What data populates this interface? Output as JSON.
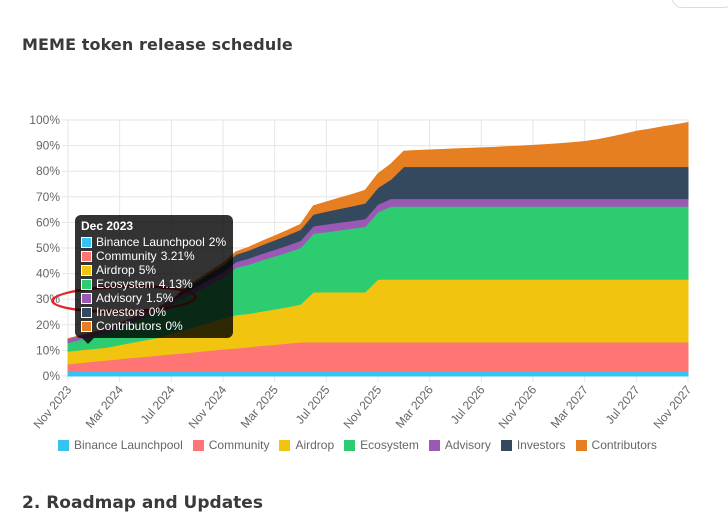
{
  "page": {
    "title": "MEME token release schedule",
    "next_section": "2. Roadmap and Updates"
  },
  "tooltip": {
    "title": "Dec 2023",
    "rows": [
      {
        "label": "Binance Launchpool",
        "value": "2%",
        "color": "#36c3f0"
      },
      {
        "label": "Community",
        "value": "3.21%",
        "color": "#ff7474"
      },
      {
        "label": "Airdrop",
        "value": "5%",
        "color": "#f1c40f"
      },
      {
        "label": "Ecosystem",
        "value": "4.13%",
        "color": "#2ecc71"
      },
      {
        "label": "Advisory",
        "value": "1.5%",
        "color": "#9b59b6"
      },
      {
        "label": "Investors",
        "value": "0%",
        "color": "#34495e"
      },
      {
        "label": "Contributors",
        "value": "0%",
        "color": "#e67e22"
      }
    ]
  },
  "chart_data": {
    "type": "area",
    "stacked": true,
    "title": "MEME token release schedule",
    "x": [
      "Nov 2023",
      "Dec 2023",
      "Jan 2024",
      "Feb 2024",
      "Mar 2024",
      "Apr 2024",
      "May 2024",
      "Jun 2024",
      "Jul 2024",
      "Aug 2024",
      "Sep 2024",
      "Oct 2024",
      "Nov 2024",
      "Dec 2024",
      "Jan 2025",
      "Feb 2025",
      "Mar 2025",
      "Apr 2025",
      "May 2025",
      "Jun 2025",
      "Jul 2025",
      "Aug 2025",
      "Sep 2025",
      "Oct 2025",
      "Nov 2025",
      "Dec 2025",
      "Jan 2026",
      "Feb 2026",
      "Mar 2026",
      "Apr 2026",
      "May 2026",
      "Jun 2026",
      "Jul 2026",
      "Aug 2026",
      "Sep 2026",
      "Oct 2026",
      "Nov 2026",
      "Dec 2026",
      "Jan 2027",
      "Feb 2027",
      "Mar 2027",
      "Apr 2027",
      "May 2027",
      "Jun 2027",
      "Jul 2027",
      "Aug 2027",
      "Sep 2027",
      "Oct 2027",
      "Nov 2027"
    ],
    "x_tick_labels": [
      "Nov 2023",
      "Mar 2024",
      "Jul 2024",
      "Nov 2024",
      "Mar 2025",
      "Jul 2025",
      "Nov 2025",
      "Mar 2026",
      "Jul 2026",
      "Nov 2026",
      "Mar 2027",
      "Jul 2027",
      "Nov 2027"
    ],
    "y_tick_labels": [
      "0%",
      "10%",
      "20%",
      "30%",
      "40%",
      "50%",
      "60%",
      "70%",
      "80%",
      "90%",
      "100%"
    ],
    "ylim": [
      0,
      100
    ],
    "y_unit": "%",
    "grid": true,
    "legend_position": "bottom",
    "series": [
      {
        "name": "Binance Launchpool",
        "color": "#36c3f0",
        "values": [
          2,
          2,
          2,
          2,
          2,
          2,
          2,
          2,
          2,
          2,
          2,
          2,
          2,
          2,
          2,
          2,
          2,
          2,
          2,
          2,
          2,
          2,
          2,
          2,
          2,
          2,
          2,
          2,
          2,
          2,
          2,
          2,
          2,
          2,
          2,
          2,
          2,
          2,
          2,
          2,
          2,
          2,
          2,
          2,
          2,
          2,
          2,
          2,
          2
        ]
      },
      {
        "name": "Community",
        "color": "#ff7474",
        "values": [
          2.7,
          3.21,
          3.7,
          4.2,
          4.7,
          5.2,
          5.6,
          6.1,
          6.6,
          7.0,
          7.5,
          8.0,
          8.5,
          8.9,
          9.4,
          9.9,
          10.3,
          10.8,
          11.3,
          11.3,
          11.3,
          11.3,
          11.3,
          11.3,
          11.3,
          11.3,
          11.3,
          11.3,
          11.3,
          11.3,
          11.3,
          11.3,
          11.3,
          11.3,
          11.3,
          11.3,
          11.3,
          11.3,
          11.3,
          11.3,
          11.3,
          11.3,
          11.3,
          11.3,
          11.3,
          11.3,
          11.3,
          11.3,
          11.3
        ]
      },
      {
        "name": "Airdrop",
        "color": "#f1c40f",
        "values": [
          5,
          5,
          5,
          5,
          5.5,
          6,
          6.5,
          7,
          8,
          9,
          10,
          11,
          12,
          13,
          13,
          13.4,
          13.8,
          14.2,
          14.7,
          19.5,
          19.5,
          19.5,
          19.5,
          19.5,
          24.5,
          24.5,
          24.5,
          24.5,
          24.5,
          24.5,
          24.5,
          24.5,
          24.5,
          24.5,
          24.5,
          24.5,
          24.5,
          24.5,
          24.5,
          24.5,
          24.5,
          24.5,
          24.5,
          24.5,
          24.5,
          24.5,
          24.5,
          24.5,
          24.5
        ]
      },
      {
        "name": "Ecosystem",
        "color": "#2ecc71",
        "values": [
          3.3,
          4.13,
          4.9,
          5.6,
          6.8,
          8.0,
          9.1,
          10.3,
          11.4,
          12.6,
          13.7,
          14.9,
          16.0,
          18.5,
          19.2,
          20.0,
          20.7,
          21.4,
          22.1,
          22.9,
          23.5,
          24.2,
          24.9,
          25.6,
          26.3,
          28.5,
          28.5,
          28.5,
          28.5,
          28.5,
          28.5,
          28.5,
          28.5,
          28.5,
          28.5,
          28.5,
          28.5,
          28.5,
          28.5,
          28.5,
          28.5,
          28.5,
          28.5,
          28.5,
          28.5,
          28.5,
          28.5,
          28.5,
          28.5
        ]
      },
      {
        "name": "Advisory",
        "color": "#9b59b6",
        "values": [
          1.5,
          1.5,
          1.5,
          1.5,
          1.5,
          1.5,
          1.5,
          1.5,
          1.5,
          1.8,
          1.9,
          2.0,
          2.1,
          2.2,
          2.4,
          2.5,
          2.6,
          2.7,
          2.8,
          2.9,
          3.0,
          3.0,
          3.0,
          3.0,
          3.0,
          3.0,
          3.0,
          3.0,
          3.0,
          3.0,
          3.0,
          3.0,
          3.0,
          3.0,
          3.0,
          3.0,
          3.0,
          3.0,
          3.0,
          3.0,
          3.0,
          3.0,
          3.0,
          3.0,
          3.0,
          3.0,
          3.0,
          3.0,
          3.0
        ]
      },
      {
        "name": "Investors",
        "color": "#34495e",
        "values": [
          0,
          0,
          0,
          0,
          0,
          0,
          0,
          0,
          0,
          1.7,
          2.0,
          2.3,
          2.6,
          2.9,
          3.1,
          3.4,
          3.7,
          4.0,
          4.3,
          4.6,
          5.0,
          5.4,
          5.7,
          6.1,
          6.5,
          7.5,
          12.5,
          12.5,
          12.5,
          12.5,
          12.5,
          12.5,
          12.5,
          12.5,
          12.5,
          12.5,
          12.5,
          12.5,
          12.5,
          12.5,
          12.5,
          12.5,
          12.5,
          12.5,
          12.5,
          12.5,
          12.5,
          12.5,
          12.5
        ]
      },
      {
        "name": "Contributors",
        "color": "#e67e22",
        "values": [
          0,
          0,
          0,
          0,
          0,
          0,
          0,
          0,
          0,
          0.3,
          0.5,
          0.7,
          0.9,
          1.0,
          1.2,
          1.4,
          1.6,
          1.8,
          2.0,
          3.3,
          3.7,
          4.1,
          4.5,
          5.0,
          5.4,
          6.0,
          6.0,
          6.3,
          6.5,
          6.7,
          6.9,
          7.1,
          7.3,
          7.5,
          7.8,
          8.0,
          8.3,
          8.6,
          8.9,
          9.3,
          9.8,
          10.5,
          11.5,
          12.6,
          13.8,
          14.6,
          15.5,
          16.3,
          17.2
        ]
      }
    ]
  }
}
